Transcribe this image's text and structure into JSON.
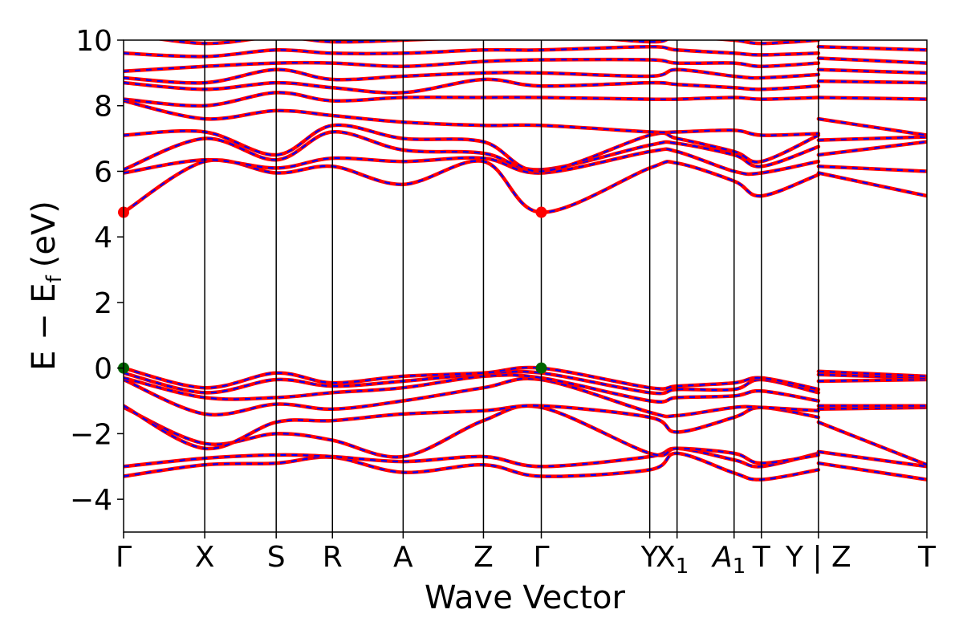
{
  "chart_data": {
    "type": "line",
    "title": "",
    "xlabel": "Wave Vector",
    "ylabel": "E − E",
    "ylabel_sub": "f",
    "ylabel_unit": "(eV)",
    "ylim": [
      -5,
      10
    ],
    "yticks": [
      -4,
      -2,
      0,
      2,
      4,
      6,
      8,
      10
    ],
    "ytick_labels": [
      "−4",
      "−2",
      "0",
      "2",
      "4",
      "6",
      "8",
      "10"
    ],
    "kpath": [
      {
        "label": "Γ",
        "x": 0.0
      },
      {
        "label": "X",
        "x": 0.101
      },
      {
        "label": "S",
        "x": 0.19
      },
      {
        "label": "R",
        "x": 0.26
      },
      {
        "label": "A",
        "x": 0.348
      },
      {
        "label": "Z",
        "x": 0.448
      },
      {
        "label": "Γ",
        "x": 0.52
      },
      {
        "label": "Y",
        "x": 0.655
      },
      {
        "label": "X",
        "sub": "1",
        "x": 0.689
      },
      {
        "label": "A",
        "sub": "1",
        "x": 0.76
      },
      {
        "label": "T",
        "x": 0.794
      },
      {
        "label": "Y | Z",
        "x": 0.865
      },
      {
        "label": "T",
        "x": 1.0
      }
    ],
    "xlim": [
      0,
      1
    ],
    "series": [
      {
        "color": "#ff0000",
        "style": "solid"
      },
      {
        "color": "#0000ff",
        "style": "dashed"
      }
    ],
    "markers": [
      {
        "kind": "cbm",
        "color": "#ff0000",
        "x": 0.0,
        "y": 4.75
      },
      {
        "kind": "cbm",
        "color": "#ff0000",
        "x": 0.52,
        "y": 4.75
      },
      {
        "kind": "vbm",
        "color": "#006400",
        "x": 0.0,
        "y": 0.0
      },
      {
        "kind": "vbm",
        "color": "#006400",
        "x": 0.52,
        "y": 0.0
      }
    ],
    "bands": [
      {
        "k": [
          0,
          0.101,
          0.19,
          0.26,
          0.348,
          0.448,
          0.52,
          0.655,
          0.689,
          0.76,
          0.794,
          0.865,
          0.865,
          1.0
        ],
        "e": [
          -3.3,
          -2.95,
          -2.9,
          -2.72,
          -3.18,
          -2.95,
          -3.3,
          -3.1,
          -2.6,
          -3.2,
          -3.4,
          -3.1,
          -2.9,
          -3.4
        ]
      },
      {
        "k": [
          0,
          0.101,
          0.19,
          0.26,
          0.348,
          0.448,
          0.52,
          0.655,
          0.689,
          0.76,
          0.794,
          0.865,
          0.865,
          1.0
        ],
        "e": [
          -3.0,
          -2.75,
          -2.65,
          -2.7,
          -2.85,
          -2.7,
          -3.0,
          -2.7,
          -2.45,
          -2.8,
          -3.0,
          -2.6,
          -2.55,
          -3.0
        ]
      },
      {
        "k": [
          0,
          0.101,
          0.19,
          0.26,
          0.348,
          0.448,
          0.52,
          0.655,
          0.689,
          0.76,
          0.794,
          0.865,
          0.865,
          1.0
        ],
        "e": [
          -1.2,
          -2.3,
          -2.0,
          -2.2,
          -2.7,
          -1.6,
          -1.2,
          -2.6,
          -2.45,
          -2.6,
          -2.9,
          -2.65,
          -1.65,
          -2.95
        ]
      },
      {
        "k": [
          0,
          0.101,
          0.19,
          0.26,
          0.348,
          0.448,
          0.52,
          0.655,
          0.689,
          0.76,
          0.794,
          0.865,
          0.865,
          1.0
        ],
        "e": [
          -1.15,
          -2.45,
          -1.65,
          -1.6,
          -1.4,
          -1.3,
          -1.15,
          -1.5,
          -1.95,
          -1.5,
          -1.2,
          -1.5,
          -1.25,
          -1.2
        ]
      },
      {
        "k": [
          0,
          0.101,
          0.19,
          0.26,
          0.348,
          0.448,
          0.52,
          0.655,
          0.689,
          0.76,
          0.794,
          0.865,
          0.865,
          1.0
        ],
        "e": [
          -0.35,
          -1.4,
          -1.1,
          -1.25,
          -1.0,
          -0.6,
          -0.35,
          -1.35,
          -1.45,
          -1.2,
          -1.2,
          -1.3,
          -1.15,
          -1.15
        ]
      },
      {
        "k": [
          0,
          0.101,
          0.19,
          0.26,
          0.348,
          0.448,
          0.52,
          0.655,
          0.689,
          0.76,
          0.794,
          0.865,
          0.865,
          1.0
        ],
        "e": [
          -0.3,
          -0.9,
          -0.9,
          -0.75,
          -0.6,
          -0.25,
          -0.3,
          -1.0,
          -0.9,
          -0.85,
          -0.7,
          -1.0,
          -0.4,
          -0.35
        ]
      },
      {
        "k": [
          0,
          0.101,
          0.19,
          0.26,
          0.348,
          0.448,
          0.52,
          0.655,
          0.689,
          0.76,
          0.794,
          0.865,
          0.865,
          1.0
        ],
        "e": [
          -0.15,
          -0.75,
          -0.35,
          -0.55,
          -0.4,
          -0.18,
          -0.15,
          -0.75,
          -0.65,
          -0.65,
          -0.35,
          -0.75,
          -0.2,
          -0.3
        ]
      },
      {
        "k": [
          0,
          0.101,
          0.19,
          0.26,
          0.348,
          0.448,
          0.52,
          0.655,
          0.689,
          0.76,
          0.794,
          0.865,
          0.865,
          1.0
        ],
        "e": [
          0.0,
          -0.6,
          -0.15,
          -0.45,
          -0.25,
          -0.15,
          0.0,
          -0.6,
          -0.55,
          -0.45,
          -0.3,
          -0.65,
          -0.1,
          -0.25
        ]
      },
      {
        "k": [
          0,
          0.101,
          0.19,
          0.26,
          0.348,
          0.448,
          0.52,
          0.655,
          0.689,
          0.76,
          0.794,
          0.865,
          0.865,
          1.0
        ],
        "e": [
          4.75,
          6.3,
          5.95,
          6.15,
          5.6,
          6.3,
          4.75,
          6.1,
          6.25,
          5.7,
          5.25,
          5.9,
          5.95,
          5.25
        ]
      },
      {
        "k": [
          0,
          0.101,
          0.19,
          0.26,
          0.348,
          0.448,
          0.52,
          0.655,
          0.689,
          0.76,
          0.794,
          0.865,
          0.865,
          1.0
        ],
        "e": [
          5.95,
          6.35,
          6.1,
          6.4,
          6.3,
          6.4,
          5.95,
          6.6,
          6.6,
          6.0,
          5.95,
          6.3,
          6.15,
          6.0
        ]
      },
      {
        "k": [
          0,
          0.101,
          0.19,
          0.26,
          0.348,
          0.448,
          0.52,
          0.655,
          0.689,
          0.76,
          0.794,
          0.865,
          0.865,
          1.0
        ],
        "e": [
          6.05,
          7.0,
          6.35,
          7.2,
          6.65,
          6.55,
          6.05,
          6.8,
          6.85,
          6.5,
          6.15,
          6.75,
          6.5,
          6.9
        ]
      },
      {
        "k": [
          0,
          0.101,
          0.19,
          0.26,
          0.348,
          0.448,
          0.52,
          0.655,
          0.689,
          0.76,
          0.794,
          0.865,
          0.865,
          1.0
        ],
        "e": [
          7.1,
          7.2,
          6.5,
          7.4,
          7.0,
          6.9,
          6.0,
          7.1,
          7.0,
          6.6,
          6.3,
          7.1,
          6.95,
          7.05
        ]
      },
      {
        "k": [
          0,
          0.101,
          0.19,
          0.26,
          0.348,
          0.448,
          0.52,
          0.655,
          0.689,
          0.76,
          0.794,
          0.865,
          0.865,
          1.0
        ],
        "e": [
          8.15,
          7.6,
          7.85,
          7.7,
          7.5,
          7.4,
          7.4,
          7.2,
          7.2,
          7.25,
          7.1,
          7.15,
          7.6,
          7.1
        ]
      },
      {
        "k": [
          0,
          0.101,
          0.19,
          0.26,
          0.348,
          0.448,
          0.52,
          0.655,
          0.689,
          0.76,
          0.794,
          0.865,
          0.865,
          1.0
        ],
        "e": [
          8.2,
          8.0,
          8.4,
          8.15,
          8.25,
          8.25,
          8.25,
          8.2,
          8.2,
          8.25,
          8.2,
          8.25,
          8.25,
          8.2
        ]
      },
      {
        "k": [
          0,
          0.101,
          0.19,
          0.26,
          0.348,
          0.448,
          0.52,
          0.655,
          0.689,
          0.76,
          0.794,
          0.865,
          0.865,
          1.0
        ],
        "e": [
          8.7,
          8.5,
          8.7,
          8.55,
          8.4,
          8.8,
          8.6,
          8.7,
          8.65,
          8.55,
          8.5,
          8.6,
          8.75,
          8.7
        ]
      },
      {
        "k": [
          0,
          0.101,
          0.19,
          0.26,
          0.348,
          0.448,
          0.52,
          0.655,
          0.689,
          0.76,
          0.794,
          0.865,
          0.865,
          1.0
        ],
        "e": [
          8.85,
          8.7,
          9.1,
          8.8,
          8.9,
          9.0,
          9.0,
          8.9,
          9.1,
          8.9,
          8.85,
          8.95,
          9.1,
          9.0
        ]
      },
      {
        "k": [
          0,
          0.101,
          0.19,
          0.26,
          0.348,
          0.448,
          0.52,
          0.655,
          0.689,
          0.76,
          0.794,
          0.865,
          0.865,
          1.0
        ],
        "e": [
          9.05,
          9.2,
          9.3,
          9.3,
          9.2,
          9.35,
          9.4,
          9.4,
          9.3,
          9.3,
          9.2,
          9.3,
          9.45,
          9.3
        ]
      },
      {
        "k": [
          0,
          0.101,
          0.19,
          0.26,
          0.348,
          0.448,
          0.52,
          0.655,
          0.689,
          0.76,
          0.794,
          0.865,
          0.865,
          1.0
        ],
        "e": [
          9.6,
          9.5,
          9.7,
          9.6,
          9.6,
          9.7,
          9.7,
          9.8,
          9.7,
          9.6,
          9.55,
          9.6,
          9.8,
          9.7
        ]
      },
      {
        "k": [
          0,
          0.101,
          0.19,
          0.26,
          0.348,
          0.448,
          0.52,
          0.655,
          0.689,
          0.76,
          0.794,
          0.865,
          0.865,
          1.0
        ],
        "e": [
          10.2,
          9.9,
          10.1,
          9.95,
          10.0,
          10.1,
          10.2,
          9.95,
          10.1,
          10.0,
          9.9,
          10.0,
          10.2,
          10.1
        ]
      }
    ]
  }
}
